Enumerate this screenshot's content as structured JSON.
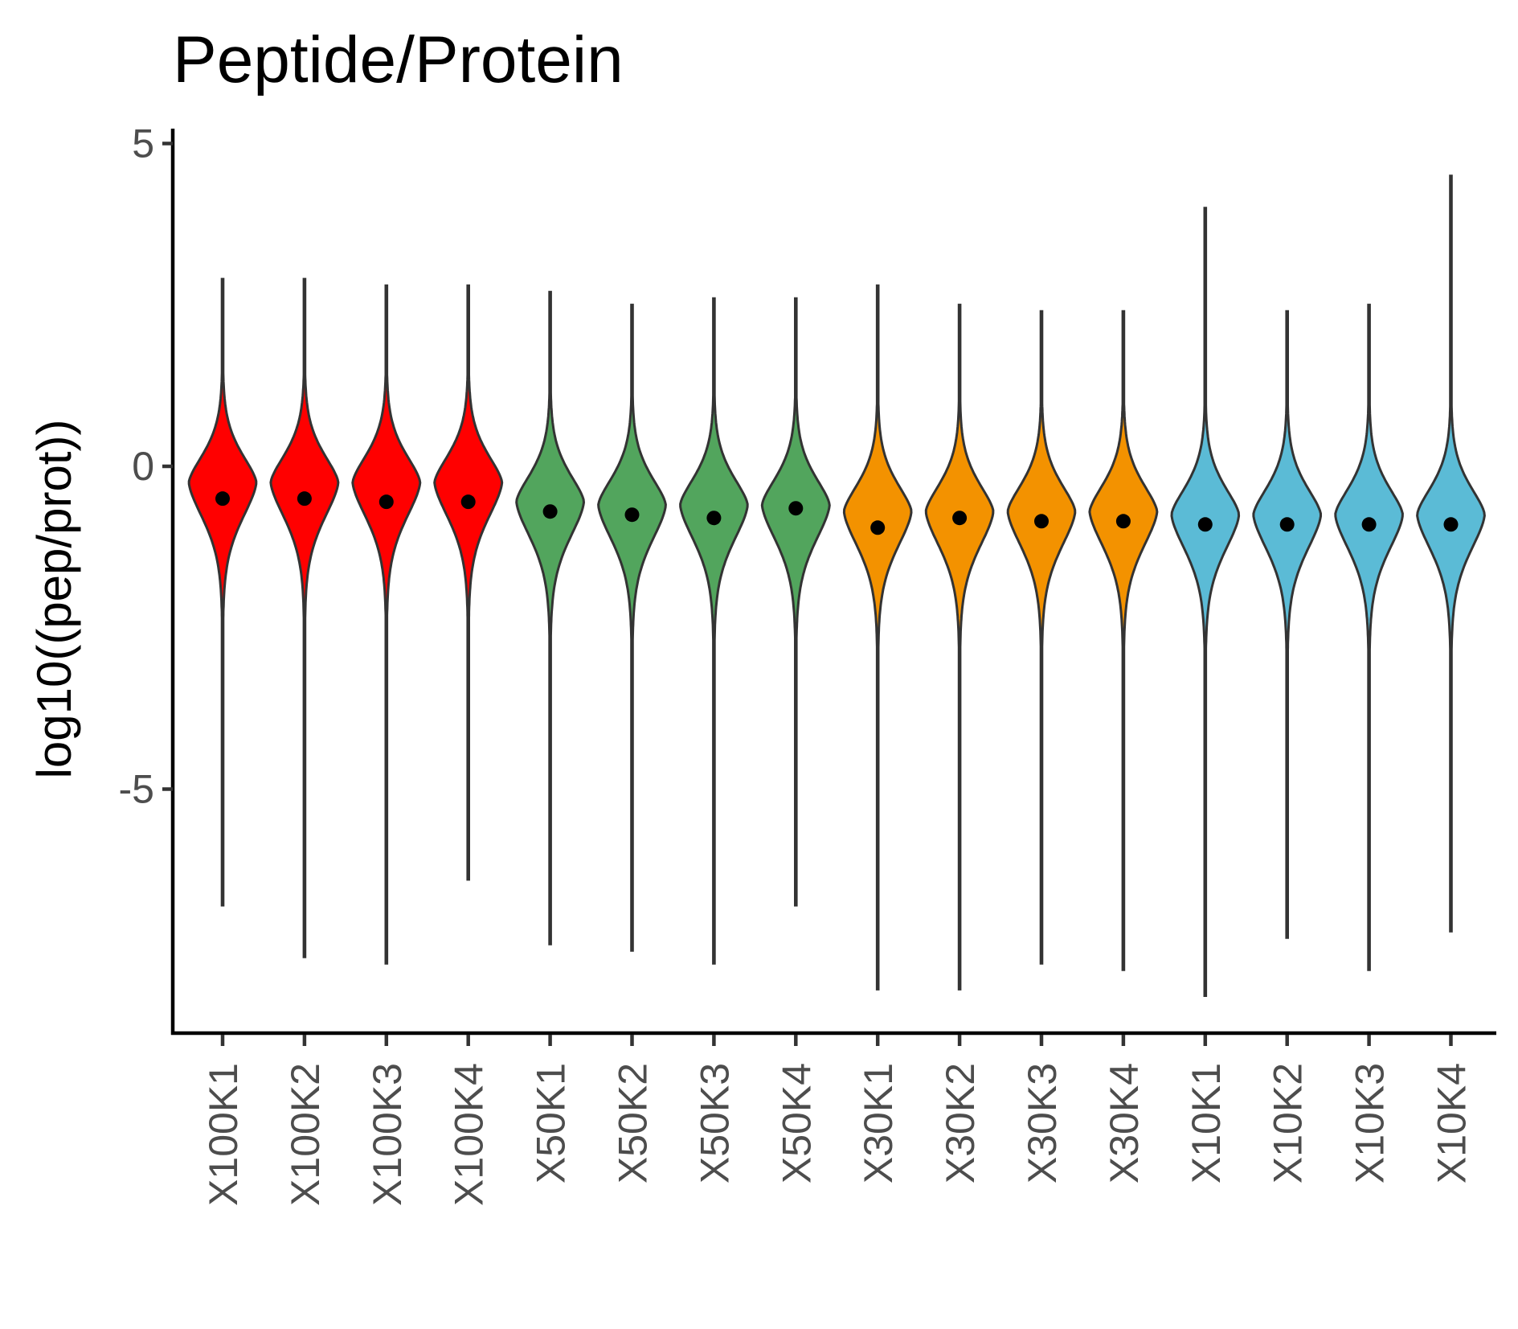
{
  "chart_data": {
    "type": "violin",
    "title": "Peptide/Protein",
    "xlabel": "",
    "ylabel": "log10((pep/prot))",
    "ylim": [
      -8.7,
      5.1
    ],
    "y_ticks": [
      5,
      0,
      -5
    ],
    "y_tick_labels": [
      "5",
      "0",
      "-5"
    ],
    "legend": "none",
    "grid": false,
    "marker": "mean point",
    "categories": [
      "X100K1",
      "X100K2",
      "X100K3",
      "X100K4",
      "X50K1",
      "X50K2",
      "X50K3",
      "X50K4",
      "X30K1",
      "X30K2",
      "X30K3",
      "X30K4",
      "X10K1",
      "X10K2",
      "X10K3",
      "X10K4"
    ],
    "groups": [
      {
        "members": [
          "X100K1",
          "X100K2",
          "X100K3",
          "X100K4"
        ],
        "color": "#ff0000"
      },
      {
        "members": [
          "X50K1",
          "X50K2",
          "X50K3",
          "X50K4"
        ],
        "color": "#52a55d"
      },
      {
        "members": [
          "X30K1",
          "X30K2",
          "X30K3",
          "X30K4"
        ],
        "color": "#f39200"
      },
      {
        "members": [
          "X10K1",
          "X10K2",
          "X10K3",
          "X10K4"
        ],
        "color": "#5bbbd6"
      }
    ],
    "series": [
      {
        "category": "X100K1",
        "max": 2.9,
        "min": -6.8,
        "mean": -0.5,
        "peak": -0.25
      },
      {
        "category": "X100K2",
        "max": 2.9,
        "min": -7.6,
        "mean": -0.5,
        "peak": -0.25
      },
      {
        "category": "X100K3",
        "max": 2.8,
        "min": -7.7,
        "mean": -0.55,
        "peak": -0.25
      },
      {
        "category": "X100K4",
        "max": 2.8,
        "min": -6.4,
        "mean": -0.55,
        "peak": -0.25
      },
      {
        "category": "X50K1",
        "max": 2.7,
        "min": -7.4,
        "mean": -0.7,
        "peak": -0.55
      },
      {
        "category": "X50K2",
        "max": 2.5,
        "min": -7.5,
        "mean": -0.75,
        "peak": -0.6
      },
      {
        "category": "X50K3",
        "max": 2.6,
        "min": -7.7,
        "mean": -0.8,
        "peak": -0.6
      },
      {
        "category": "X50K4",
        "max": 2.6,
        "min": -6.8,
        "mean": -0.65,
        "peak": -0.6
      },
      {
        "category": "X30K1",
        "max": 2.8,
        "min": -8.1,
        "mean": -0.95,
        "peak": -0.7
      },
      {
        "category": "X30K2",
        "max": 2.5,
        "min": -8.1,
        "mean": -0.8,
        "peak": -0.7
      },
      {
        "category": "X30K3",
        "max": 2.4,
        "min": -7.7,
        "mean": -0.85,
        "peak": -0.7
      },
      {
        "category": "X30K4",
        "max": 2.4,
        "min": -7.8,
        "mean": -0.85,
        "peak": -0.7
      },
      {
        "category": "X10K1",
        "max": 4.0,
        "min": -8.2,
        "mean": -0.9,
        "peak": -0.75
      },
      {
        "category": "X10K2",
        "max": 2.4,
        "min": -7.3,
        "mean": -0.9,
        "peak": -0.75
      },
      {
        "category": "X10K3",
        "max": 2.5,
        "min": -7.8,
        "mean": -0.9,
        "peak": -0.75
      },
      {
        "category": "X10K4",
        "max": 4.5,
        "min": -7.2,
        "mean": -0.9,
        "peak": -0.75
      }
    ]
  }
}
